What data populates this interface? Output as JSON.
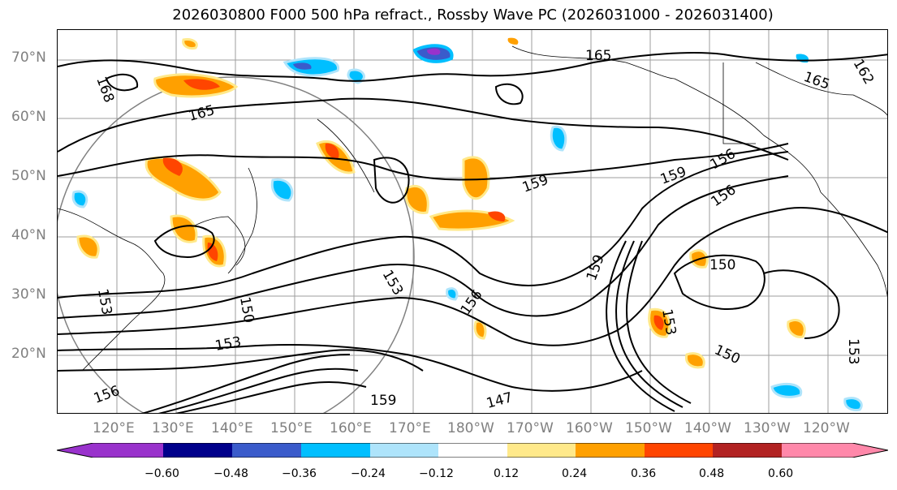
{
  "title": "2026030800 F000 500 hPa refract., Rossby Wave PC (2026031000 - 2026031400)",
  "map": {
    "lat_labels": [
      "70°N",
      "60°N",
      "50°N",
      "40°N",
      "30°N",
      "20°N"
    ],
    "lon_labels": [
      "120°E",
      "130°E",
      "140°E",
      "150°E",
      "160°E",
      "170°E",
      "180°W",
      "170°W",
      "160°W",
      "150°W",
      "140°W",
      "130°W",
      "120°W"
    ],
    "contour_labels": [
      {
        "text": "168"
      },
      {
        "text": "165"
      },
      {
        "text": "165"
      },
      {
        "text": "165"
      },
      {
        "text": "162"
      },
      {
        "text": "159"
      },
      {
        "text": "159"
      },
      {
        "text": "156"
      },
      {
        "text": "156"
      },
      {
        "text": "153"
      },
      {
        "text": "153"
      },
      {
        "text": "150"
      },
      {
        "text": "150"
      },
      {
        "text": "150"
      },
      {
        "text": "147"
      },
      {
        "text": "159"
      },
      {
        "text": "156"
      },
      {
        "text": "153"
      },
      {
        "text": "153"
      },
      {
        "text": "159"
      },
      {
        "text": "156"
      },
      {
        "text": "153"
      }
    ]
  },
  "colorbar": {
    "tick_labels": [
      "−0.60",
      "−0.48",
      "−0.36",
      "−0.24",
      "−0.12",
      "0.12",
      "0.24",
      "0.36",
      "0.48",
      "0.60"
    ],
    "colors": [
      "#9932cc",
      "#00008b",
      "#3a5bcb",
      "#00bfff",
      "#aee4fb",
      "#ffffff",
      "#ffe98a",
      "#ffa000",
      "#ff4500",
      "#b22222",
      "#ff88aa"
    ]
  }
}
